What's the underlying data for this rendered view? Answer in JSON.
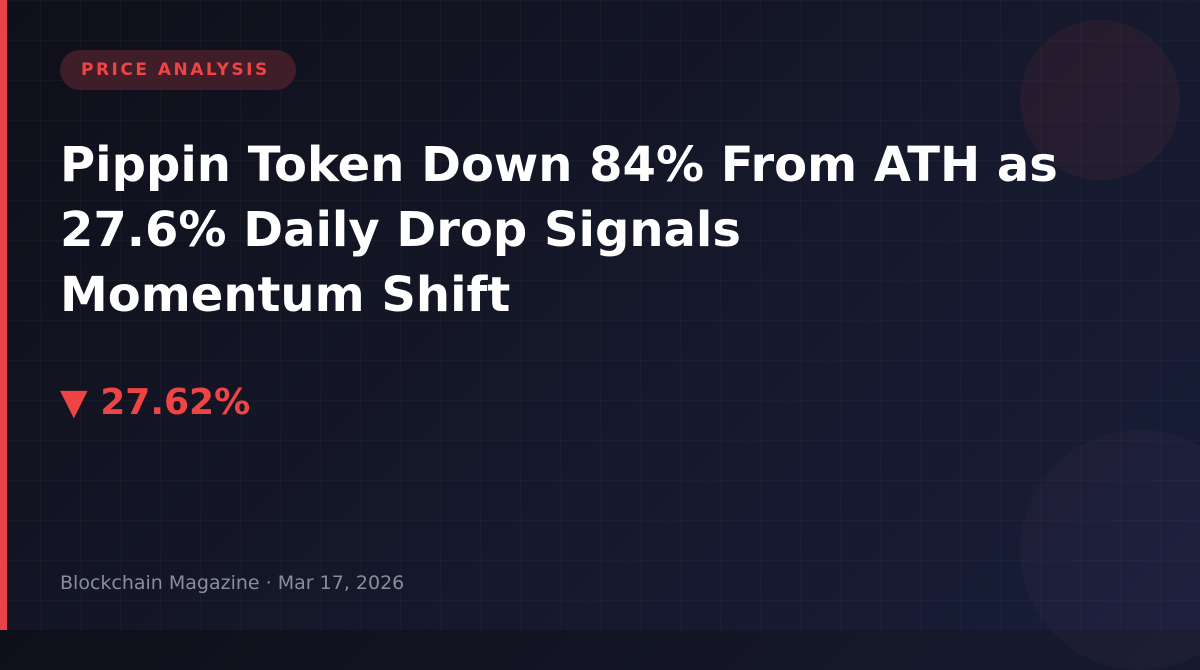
{
  "category": "PRICE ANALYSIS",
  "headline": "Pippin Token Down 84% From ATH as 27.6% Daily Drop Signals Momentum Shift",
  "price_change": {
    "arrow": "▼",
    "icon": "triangle-down-icon",
    "value": "27.62%",
    "direction": "down"
  },
  "footer": {
    "publisher": "Blockchain Magazine",
    "separator": "·",
    "date": "Mar 17, 2026"
  },
  "colors": {
    "accent": "#ef4444",
    "background": "#12131f",
    "text": "#ffffff",
    "muted": "#8a8d9b"
  }
}
